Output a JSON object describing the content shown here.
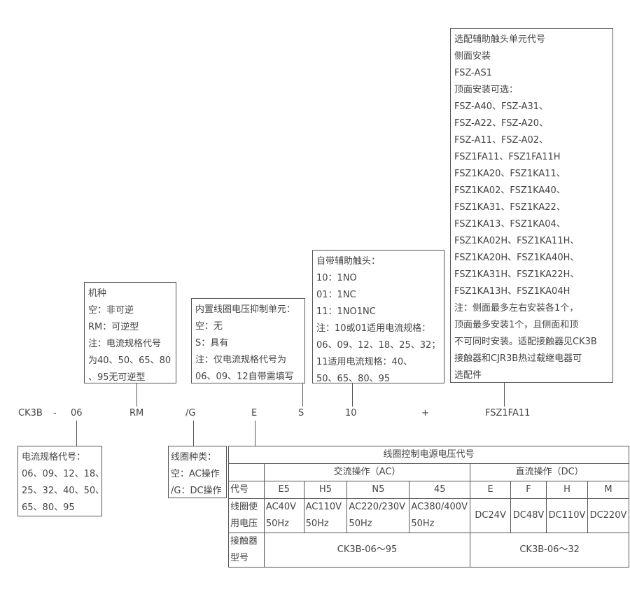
{
  "model_code": [
    "CK3B",
    "-",
    "06",
    "RM",
    "/G",
    "E",
    "S",
    "10",
    "+",
    "FSZ1FA11"
  ],
  "box_type": [
    "机种",
    "空：非可逆",
    "RM：可逆型",
    "注：电流规格代号",
    "为40、50、65、80",
    "、95无可逆型"
  ],
  "box_suppressor": [
    "内置线圈电压抑制单元：",
    "空：无",
    "S：具有",
    "注：仅电流规格代号为",
    "06、09、12自带需填写"
  ],
  "box_aux": [
    "自带辅助触头：",
    "10：1NO",
    "01：1NC",
    "11：1NO1NC",
    "注：10或01适用电流规格：",
    "06、09、12、18、25、32；",
    "11适用电流规格：40、",
    "50、65、80、95"
  ],
  "box_accessory": [
    "选配辅助触头单元代号",
    "侧面安装",
    "FSZ-AS1",
    "顶面安装可选：",
    "FSZ-A40、FSZ-A31、",
    "FSZ-A22、FSZ-A20、",
    "FSZ-A11、FSZ-A02、",
    "FSZ1FA11、FSZ1FA11H",
    "FSZ1KA20、FSZ1KA11、",
    "FSZ1KA02、FSZ1KA40、",
    "FSZ1KA31、FSZ1KA22、",
    "FSZ1KA13、FSZ1KA04、",
    "FSZ1KA02H、FSZ1KA11H、",
    "FSZ1KA20H、FSZ1KA40H、",
    "FSZ1KA31H、FSZ1KA22H、",
    "FSZ1KA13H、FSZ1KA04H",
    "注：侧面最多左右安装各1个，",
    "顶面最多安装1个，且侧面和顶",
    "不可同时安装。适配接触器见CK3B",
    "接触器和CJR3B热过载继电器可",
    "选配件"
  ],
  "box_current": [
    "电流规格代号：",
    "06、09、12、18、",
    "25、32、40、50、",
    "65、80、95"
  ],
  "box_coil": [
    "线圈种类：",
    "空：AC操作",
    "/G：DC操作"
  ],
  "table": {
    "title": "线圈控制电源电压代号",
    "ac_header": "交流操作（AC）",
    "dc_header": "直流操作（DC）",
    "code_label": "代号",
    "codes": [
      "E5",
      "H5",
      "N5",
      "45",
      "E",
      "F",
      "H",
      "M"
    ],
    "voltage_label": [
      "线圈使",
      "用电压"
    ],
    "ac_voltages": [
      [
        "AC40V",
        "50Hz"
      ],
      [
        "AC110V",
        "50Hz"
      ],
      [
        "AC220/230V",
        "50Hz"
      ],
      [
        "AC380/400V",
        "50Hz"
      ]
    ],
    "dc_voltages": [
      "DC24V",
      "DC48V",
      "DC110V",
      "DC220V"
    ],
    "model_label": [
      "接触器",
      "型号"
    ],
    "ac_model": "CK3B-06～95",
    "dc_model": "CK3B-06～32"
  }
}
